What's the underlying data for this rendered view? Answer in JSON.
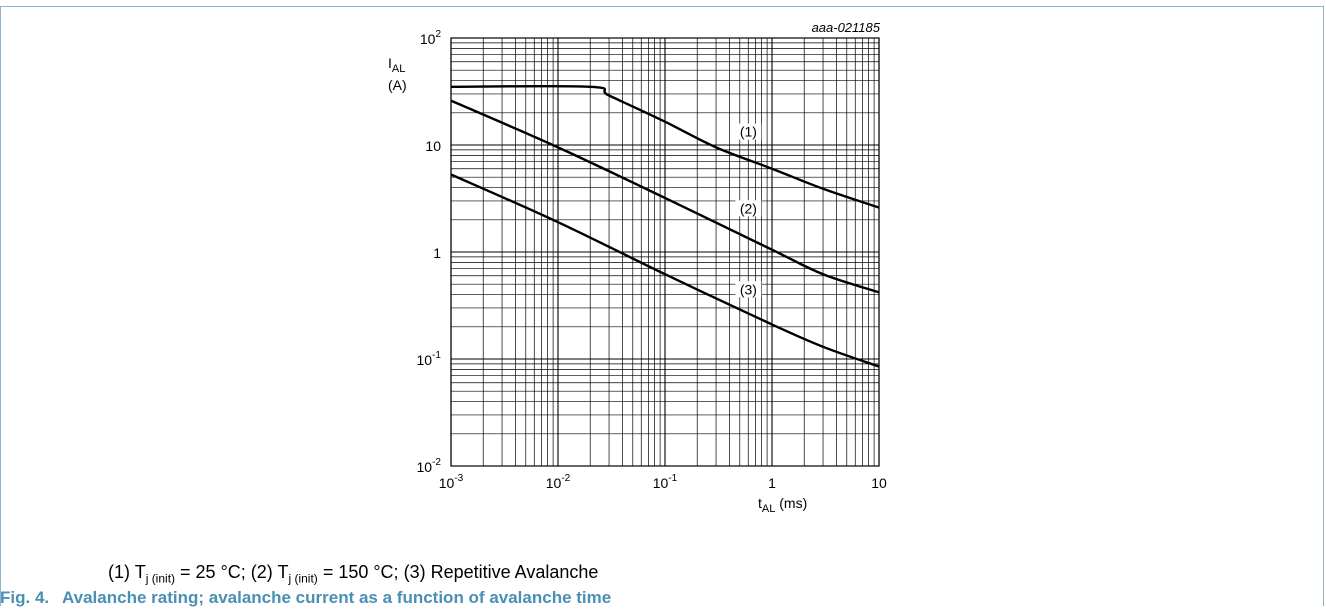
{
  "figure": {
    "code": "aaa-021185",
    "caption_number": "Fig. 4.",
    "caption_text": "Avalanche rating; avalanche current as a function of avalanche time"
  },
  "legend": {
    "items": [
      {
        "label": "(1)",
        "text_pre": "T",
        "text_sub": "j (init)",
        "text_post": " = 25 °C;"
      },
      {
        "label": "(2)",
        "text_pre": "T",
        "text_sub": "j (init)",
        "text_post": " = 150 °C;"
      },
      {
        "label": "(3)",
        "text_pre": "",
        "text_sub": "",
        "text_post": "Repetitive Avalanche"
      }
    ]
  },
  "chart_data": {
    "type": "line",
    "x_scale": "log",
    "y_scale": "log",
    "xlim": [
      0.001,
      10
    ],
    "ylim": [
      0.01,
      100
    ],
    "grid": true,
    "xlabel": {
      "main": "t",
      "sub": "AL",
      "unit": " (ms)"
    },
    "ylabel": {
      "main": "I",
      "sub": "AL",
      "unit": "(A)"
    },
    "x_ticks": [
      {
        "value": 0.001,
        "base": "10",
        "exp": "-3"
      },
      {
        "value": 0.01,
        "base": "10",
        "exp": "-2"
      },
      {
        "value": 0.1,
        "base": "10",
        "exp": "-1"
      },
      {
        "value": 1,
        "base": "1",
        "exp": ""
      },
      {
        "value": 10,
        "base": "10",
        "exp": ""
      }
    ],
    "y_ticks": [
      {
        "value": 100,
        "base": "10",
        "exp": "2"
      },
      {
        "value": 10,
        "base": "10",
        "exp": ""
      },
      {
        "value": 1,
        "base": "1",
        "exp": ""
      },
      {
        "value": 0.1,
        "base": "10",
        "exp": "-1"
      },
      {
        "value": 0.01,
        "base": "10",
        "exp": "-2"
      }
    ],
    "series": [
      {
        "name": "(1)",
        "label_at": {
          "x": 0.4,
          "y": 12.5
        },
        "points": [
          [
            0.001,
            35
          ],
          [
            0.02,
            35
          ],
          [
            0.03,
            29
          ],
          [
            0.1,
            16.5
          ],
          [
            0.3,
            9.5
          ],
          [
            1,
            6
          ],
          [
            3,
            3.9
          ],
          [
            10,
            2.6
          ]
        ]
      },
      {
        "name": "(2)",
        "label_at": {
          "x": 0.4,
          "y": 2.4
        },
        "points": [
          [
            0.001,
            26
          ],
          [
            0.01,
            9.5
          ],
          [
            0.1,
            3.2
          ],
          [
            1,
            1.05
          ],
          [
            3,
            0.62
          ],
          [
            10,
            0.42
          ]
        ]
      },
      {
        "name": "(3)",
        "label_at": {
          "x": 0.4,
          "y": 0.42
        },
        "points": [
          [
            0.001,
            5.3
          ],
          [
            0.01,
            1.9
          ],
          [
            0.1,
            0.62
          ],
          [
            1,
            0.21
          ],
          [
            3,
            0.13
          ],
          [
            10,
            0.085
          ]
        ]
      }
    ]
  }
}
